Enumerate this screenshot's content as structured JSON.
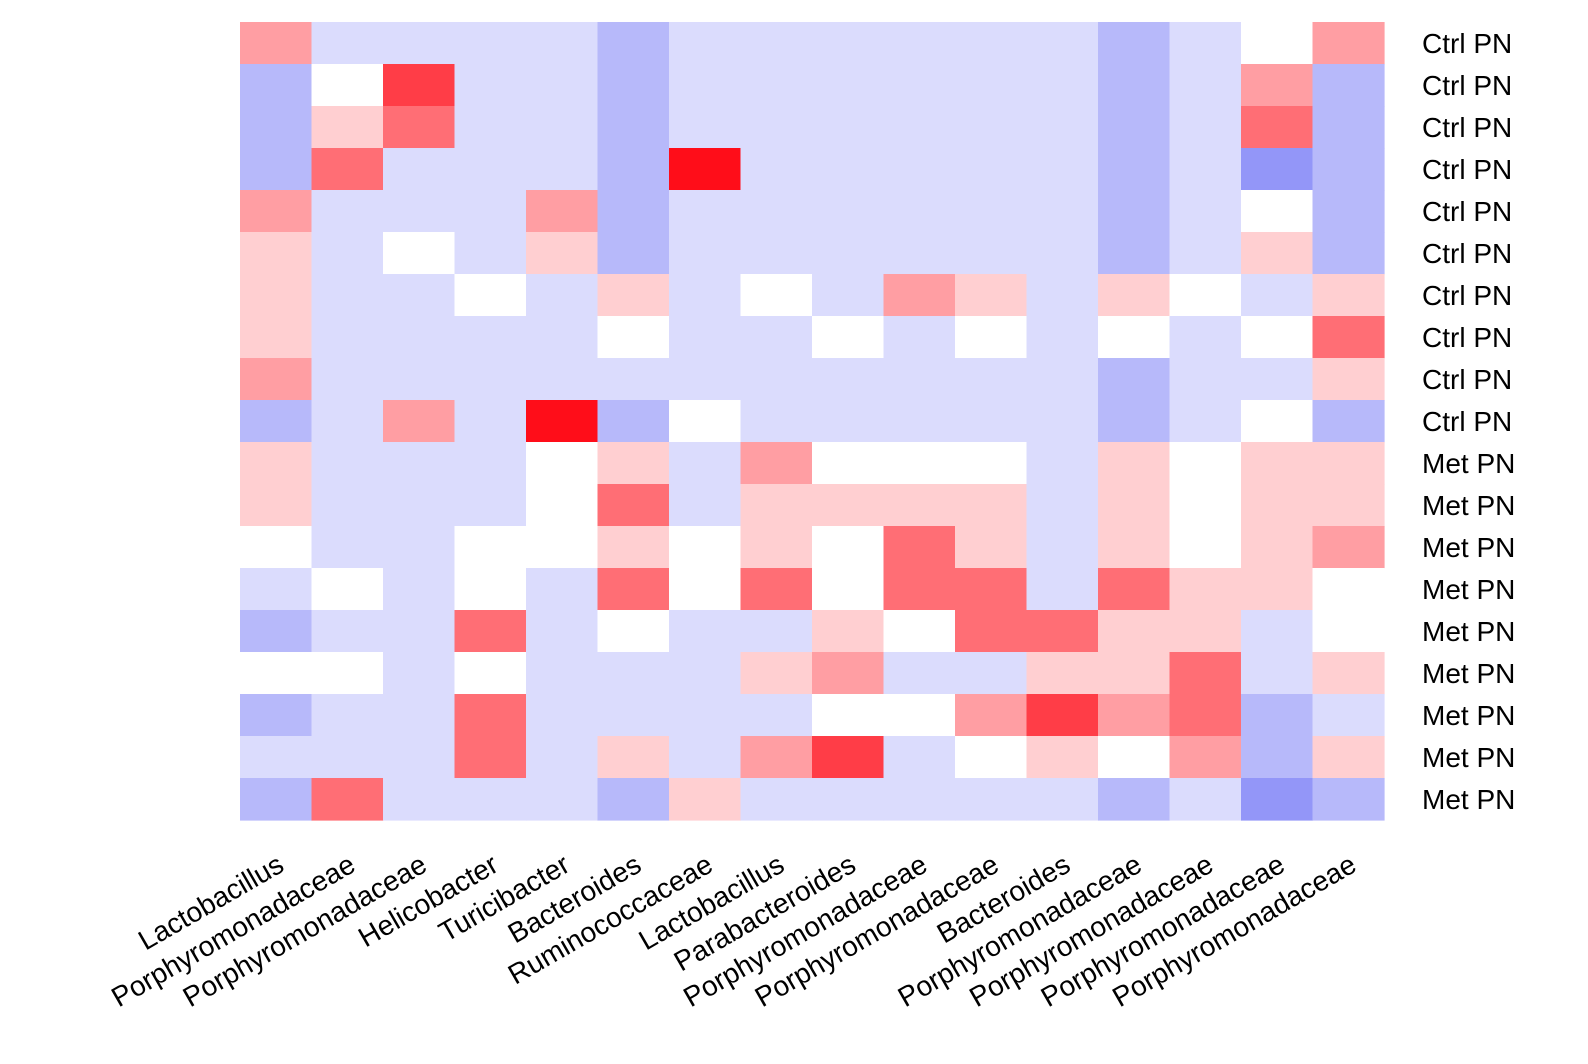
{
  "chart_data": {
    "type": "heatmap",
    "title": "",
    "xlabel": "",
    "ylabel": "",
    "columns": [
      "Lactobacillus",
      "Porphyromonadaceae",
      "Porphyromonadaceae",
      "Helicobacter",
      "Turicibacter",
      "Bacteroides",
      "Ruminococcaceae",
      "Lactobacillus",
      "Parabacteroides",
      "Porphyromonadaceae",
      "Porphyromonadaceae",
      "Bacteroides",
      "Porphyromonadaceae",
      "Porphyromonadaceae",
      "Porphyromonadaceae",
      "Porphyromonadaceae"
    ],
    "rows": [
      "Ctrl PN",
      "Ctrl PN",
      "Ctrl PN",
      "Ctrl PN",
      "Ctrl PN",
      "Ctrl PN",
      "Ctrl PN",
      "Ctrl PN",
      "Ctrl PN",
      "Ctrl PN",
      "Met PN",
      "Met PN",
      "Met PN",
      "Met PN",
      "Met PN",
      "Met PN",
      "Met PN",
      "Met PN",
      "Met PN"
    ],
    "value_scale": "-3 = strongest blue, 0 = white, 5 = strongest red (read from cell colour)",
    "colors": {
      "negative": "#9396f8",
      "neutral": "#ffffff",
      "positive": "#ff0d19"
    },
    "values": [
      [
        2,
        -1,
        -1,
        -1,
        -1,
        -2,
        -1,
        -1,
        -1,
        -1,
        -1,
        -1,
        -2,
        -1,
        0,
        2
      ],
      [
        -2,
        0,
        4,
        -1,
        -1,
        -2,
        -1,
        -1,
        -1,
        -1,
        -1,
        -1,
        -2,
        -1,
        2,
        -2
      ],
      [
        -2,
        1,
        3,
        -1,
        -1,
        -2,
        -1,
        -1,
        -1,
        -1,
        -1,
        -1,
        -2,
        -1,
        3,
        -2
      ],
      [
        -2,
        3,
        -1,
        -1,
        -1,
        -2,
        5,
        -1,
        -1,
        -1,
        -1,
        -1,
        -2,
        -1,
        -3,
        -2
      ],
      [
        2,
        -1,
        -1,
        -1,
        2,
        -2,
        -1,
        -1,
        -1,
        -1,
        -1,
        -1,
        -2,
        -1,
        0,
        -2
      ],
      [
        1,
        -1,
        0,
        -1,
        1,
        -2,
        -1,
        -1,
        -1,
        -1,
        -1,
        -1,
        -2,
        -1,
        1,
        -2
      ],
      [
        1,
        -1,
        -1,
        0,
        -1,
        1,
        -1,
        0,
        -1,
        2,
        1,
        -1,
        1,
        0,
        -1,
        1
      ],
      [
        1,
        -1,
        -1,
        -1,
        -1,
        0,
        -1,
        -1,
        0,
        -1,
        0,
        -1,
        0,
        -1,
        0,
        3
      ],
      [
        2,
        -1,
        -1,
        -1,
        -1,
        -1,
        -1,
        -1,
        -1,
        -1,
        -1,
        -1,
        -2,
        -1,
        -1,
        1
      ],
      [
        -2,
        -1,
        2,
        -1,
        5,
        -2,
        0,
        -1,
        -1,
        -1,
        -1,
        -1,
        -2,
        -1,
        0,
        -2
      ],
      [
        1,
        -1,
        -1,
        -1,
        0,
        1,
        -1,
        2,
        0,
        0,
        0,
        -1,
        1,
        0,
        1,
        1
      ],
      [
        1,
        -1,
        -1,
        -1,
        0,
        3,
        -1,
        1,
        1,
        1,
        1,
        -1,
        1,
        0,
        1,
        1
      ],
      [
        0,
        -1,
        -1,
        0,
        0,
        1,
        0,
        1,
        0,
        3,
        1,
        -1,
        1,
        0,
        1,
        2
      ],
      [
        -1,
        0,
        -1,
        0,
        -1,
        3,
        0,
        3,
        0,
        3,
        3,
        -1,
        3,
        1,
        1,
        0
      ],
      [
        -2,
        -1,
        -1,
        3,
        -1,
        0,
        -1,
        -1,
        1,
        0,
        3,
        3,
        1,
        1,
        -1,
        0
      ],
      [
        0,
        0,
        -1,
        0,
        -1,
        -1,
        -1,
        1,
        2,
        -1,
        -1,
        1,
        1,
        3,
        -1,
        1
      ],
      [
        -2,
        -1,
        -1,
        3,
        -1,
        -1,
        -1,
        -1,
        0,
        0,
        2,
        4,
        2,
        3,
        -2,
        -1
      ],
      [
        -1,
        -1,
        -1,
        3,
        -1,
        1,
        -1,
        2,
        4,
        -1,
        0,
        1,
        0,
        2,
        -2,
        1
      ],
      [
        -2,
        3,
        -1,
        -1,
        -1,
        -2,
        1,
        -1,
        -1,
        -1,
        -1,
        -1,
        -2,
        -1,
        -3,
        -2
      ]
    ]
  }
}
